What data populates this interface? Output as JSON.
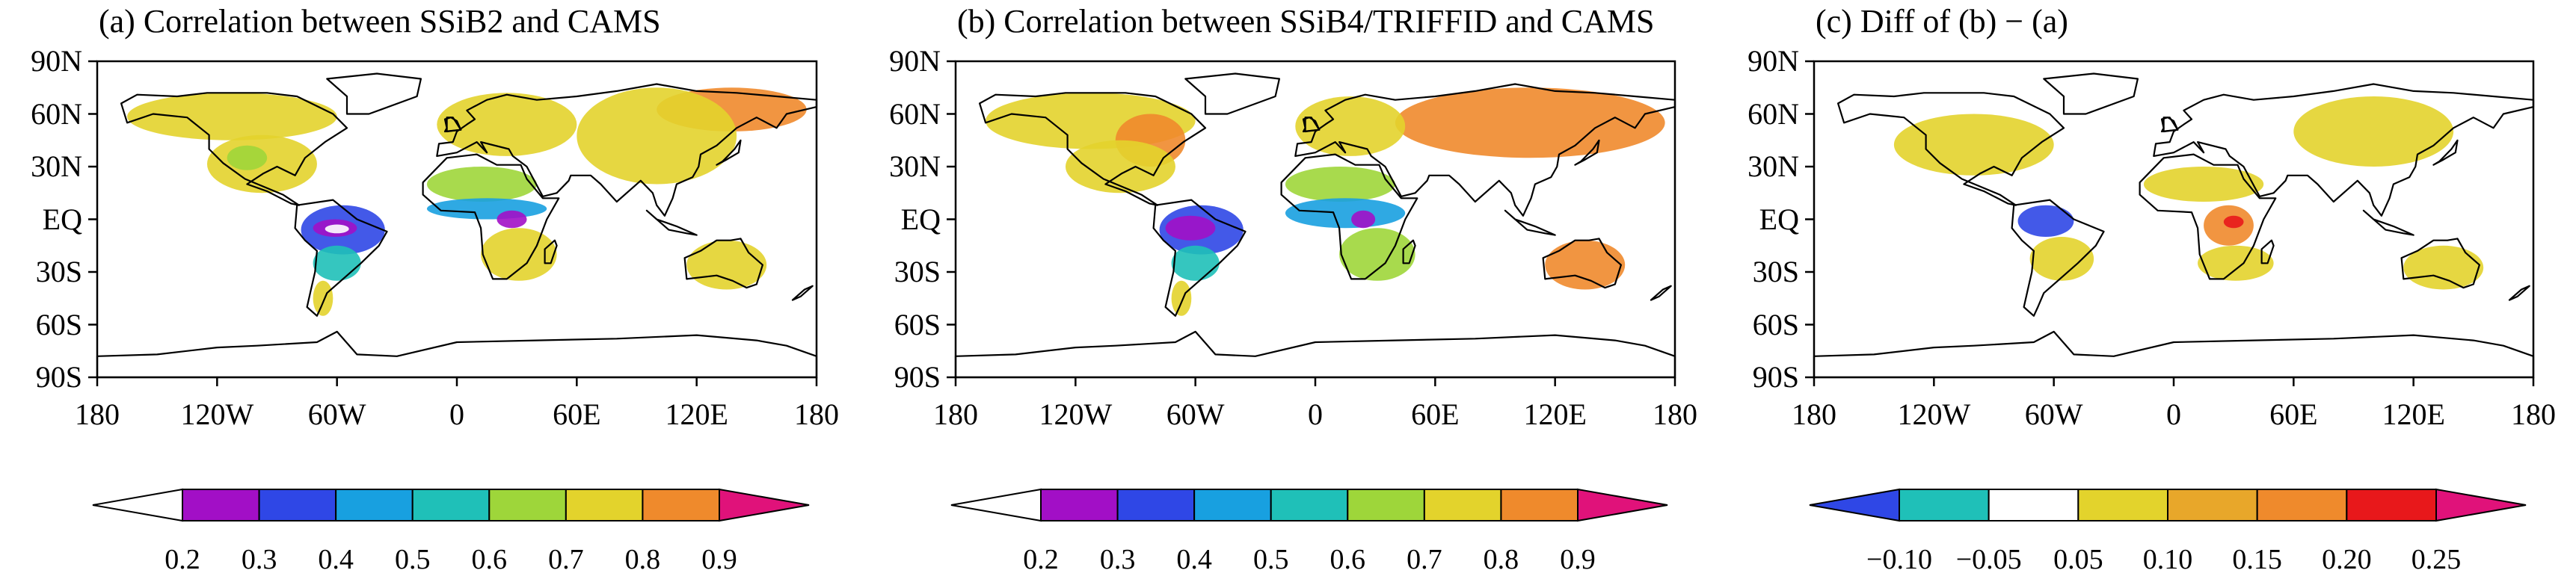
{
  "panels": [
    {
      "id": "a",
      "title": "(a) Correlation between SSiB2 and CAMS",
      "colorbar": {
        "labels": [
          "0.2",
          "0.3",
          "0.4",
          "0.5",
          "0.6",
          "0.7",
          "0.8",
          "0.9"
        ],
        "colors": [
          "#ffffff",
          "#a20fc6",
          "#2f47e6",
          "#18a0e0",
          "#1fc0b8",
          "#9ed63a",
          "#e3d32c",
          "#ef8a2c",
          "#e0127a"
        ]
      },
      "fields": [
        {
          "color": "#e3d32c",
          "lon": [
            -165,
            -60
          ],
          "lat": [
            45,
            72
          ]
        },
        {
          "color": "#e3d32c",
          "lon": [
            -125,
            -70
          ],
          "lat": [
            15,
            48
          ]
        },
        {
          "color": "#9ed63a",
          "lon": [
            -115,
            -95
          ],
          "lat": [
            28,
            42
          ]
        },
        {
          "color": "#2f47e6",
          "lon": [
            -78,
            -36
          ],
          "lat": [
            -20,
            8
          ]
        },
        {
          "color": "#a20fc6",
          "lon": [
            -72,
            -50
          ],
          "lat": [
            -10,
            0
          ]
        },
        {
          "color": "#ffffff",
          "lon": [
            -66,
            -54
          ],
          "lat": [
            -8,
            -3
          ]
        },
        {
          "color": "#1fc0b8",
          "lon": [
            -72,
            -48
          ],
          "lat": [
            -35,
            -15
          ]
        },
        {
          "color": "#e3d32c",
          "lon": [
            -72,
            -62
          ],
          "lat": [
            -55,
            -35
          ]
        },
        {
          "color": "#e3d32c",
          "lon": [
            -10,
            60
          ],
          "lat": [
            36,
            72
          ]
        },
        {
          "color": "#ef8a2c",
          "lon": [
            100,
            175
          ],
          "lat": [
            50,
            75
          ]
        },
        {
          "color": "#e3d32c",
          "lon": [
            60,
            140
          ],
          "lat": [
            20,
            75
          ]
        },
        {
          "color": "#9ed63a",
          "lon": [
            -15,
            40
          ],
          "lat": [
            10,
            30
          ]
        },
        {
          "color": "#18a0e0",
          "lon": [
            -15,
            45
          ],
          "lat": [
            0,
            12
          ]
        },
        {
          "color": "#a20fc6",
          "lon": [
            20,
            35
          ],
          "lat": [
            -5,
            5
          ]
        },
        {
          "color": "#e3d32c",
          "lon": [
            12,
            50
          ],
          "lat": [
            -35,
            -5
          ]
        },
        {
          "color": "#e3d32c",
          "lon": [
            115,
            155
          ],
          "lat": [
            -40,
            -12
          ]
        }
      ]
    },
    {
      "id": "b",
      "title": "(b) Correlation between SSiB4/TRIFFID and CAMS",
      "colorbar": {
        "labels": [
          "0.2",
          "0.3",
          "0.4",
          "0.5",
          "0.6",
          "0.7",
          "0.8",
          "0.9"
        ],
        "colors": [
          "#ffffff",
          "#a20fc6",
          "#2f47e6",
          "#18a0e0",
          "#1fc0b8",
          "#9ed63a",
          "#e3d32c",
          "#ef8a2c",
          "#e0127a"
        ]
      },
      "fields": [
        {
          "color": "#e3d32c",
          "lon": [
            -165,
            -60
          ],
          "lat": [
            40,
            72
          ]
        },
        {
          "color": "#ef8a2c",
          "lon": [
            -100,
            -65
          ],
          "lat": [
            30,
            60
          ]
        },
        {
          "color": "#e3d32c",
          "lon": [
            -125,
            -70
          ],
          "lat": [
            15,
            45
          ]
        },
        {
          "color": "#2f47e6",
          "lon": [
            -78,
            -36
          ],
          "lat": [
            -20,
            8
          ]
        },
        {
          "color": "#a20fc6",
          "lon": [
            -75,
            -50
          ],
          "lat": [
            -12,
            2
          ]
        },
        {
          "color": "#1fc0b8",
          "lon": [
            -72,
            -48
          ],
          "lat": [
            -35,
            -15
          ]
        },
        {
          "color": "#e3d32c",
          "lon": [
            -72,
            -62
          ],
          "lat": [
            -55,
            -35
          ]
        },
        {
          "color": "#ef8a2c",
          "lon": [
            40,
            175
          ],
          "lat": [
            35,
            75
          ]
        },
        {
          "color": "#e3d32c",
          "lon": [
            -10,
            45
          ],
          "lat": [
            36,
            70
          ]
        },
        {
          "color": "#9ed63a",
          "lon": [
            -15,
            40
          ],
          "lat": [
            10,
            30
          ]
        },
        {
          "color": "#18a0e0",
          "lon": [
            -15,
            45
          ],
          "lat": [
            -5,
            12
          ]
        },
        {
          "color": "#a20fc6",
          "lon": [
            18,
            30
          ],
          "lat": [
            -5,
            5
          ]
        },
        {
          "color": "#9ed63a",
          "lon": [
            12,
            50
          ],
          "lat": [
            -35,
            -5
          ]
        },
        {
          "color": "#ef8a2c",
          "lon": [
            115,
            155
          ],
          "lat": [
            -40,
            -12
          ]
        }
      ]
    },
    {
      "id": "c",
      "title": "(c) Diff of (b) − (a)",
      "colorbar": {
        "labels": [
          "−0.10",
          "−0.05",
          "0.05",
          "0.10",
          "0.15",
          "0.20",
          "0.25"
        ],
        "colors": [
          "#2f47e6",
          "#1fc0b8",
          "#ffffff",
          "#e3d32c",
          "#e8a72a",
          "#ef8a2c",
          "#e8181b",
          "#e0127a"
        ]
      },
      "fields": [
        {
          "color": "#e3d32c",
          "lon": [
            -140,
            -60
          ],
          "lat": [
            25,
            60
          ]
        },
        {
          "color": "#2f47e6",
          "lon": [
            -78,
            -50
          ],
          "lat": [
            -10,
            8
          ]
        },
        {
          "color": "#e3d32c",
          "lon": [
            -72,
            -40
          ],
          "lat": [
            -35,
            -10
          ]
        },
        {
          "color": "#e3d32c",
          "lon": [
            60,
            140
          ],
          "lat": [
            30,
            70
          ]
        },
        {
          "color": "#e3d32c",
          "lon": [
            -15,
            45
          ],
          "lat": [
            10,
            30
          ]
        },
        {
          "color": "#ef8a2c",
          "lon": [
            15,
            40
          ],
          "lat": [
            -15,
            8
          ]
        },
        {
          "color": "#e8181b",
          "lon": [
            25,
            35
          ],
          "lat": [
            -5,
            2
          ]
        },
        {
          "color": "#e3d32c",
          "lon": [
            12,
            50
          ],
          "lat": [
            -35,
            -15
          ]
        },
        {
          "color": "#e3d32c",
          "lon": [
            115,
            155
          ],
          "lat": [
            -40,
            -15
          ]
        }
      ]
    }
  ],
  "axes": {
    "y_ticks": [
      "90N",
      "60N",
      "30N",
      "EQ",
      "30S",
      "60S",
      "90S"
    ],
    "x_ticks": [
      "180",
      "120W",
      "60W",
      "0",
      "60E",
      "120E",
      "180"
    ]
  }
}
